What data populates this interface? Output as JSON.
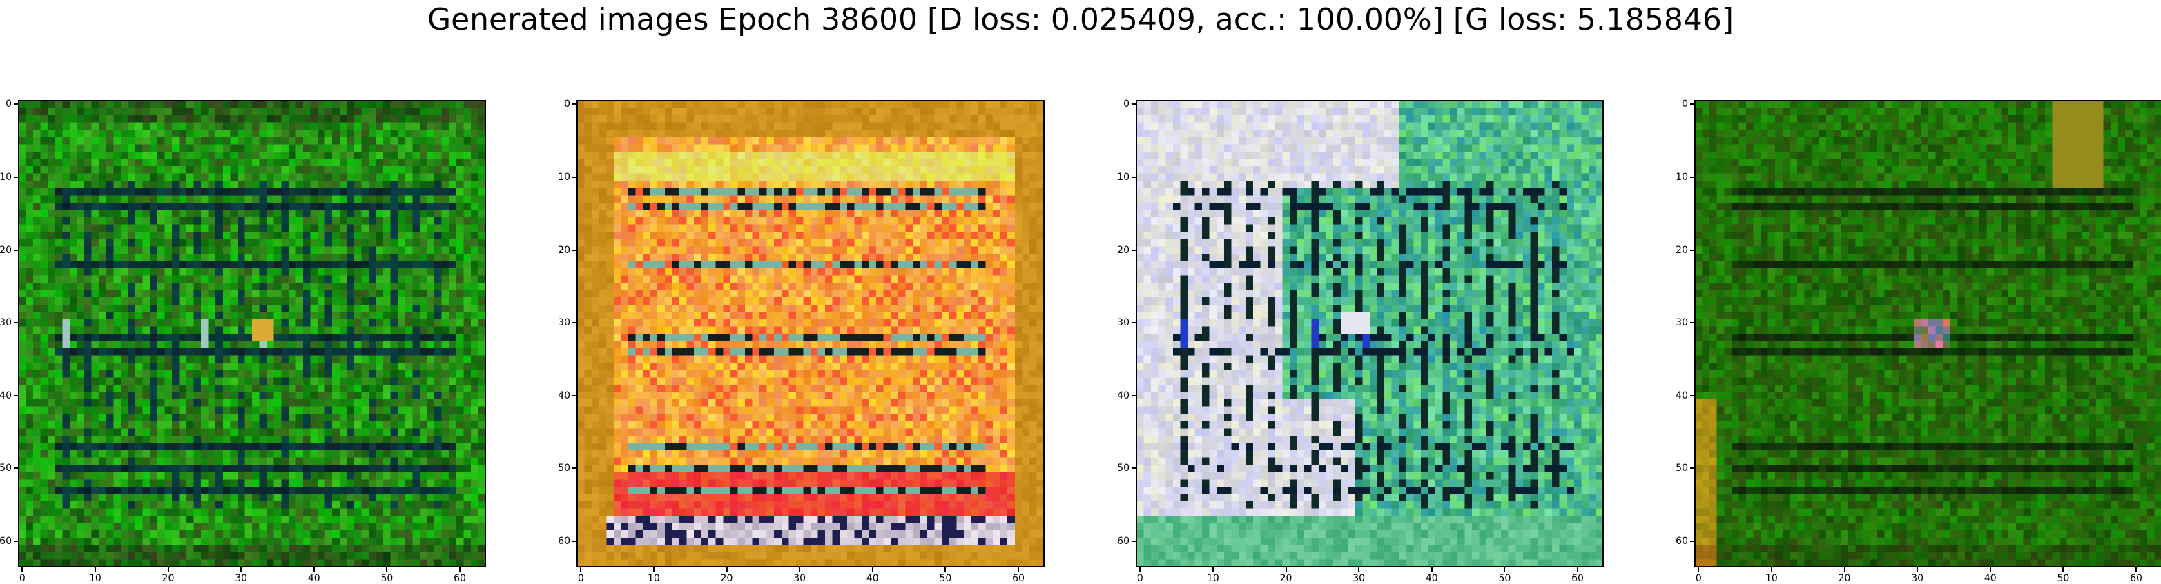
{
  "title": "Generated images Epoch 38600 [D loss: 0.025409, acc.: 100.00%] [G loss: 5.185846]",
  "chart_data": [
    {
      "type": "heatmap",
      "image": "panel-1",
      "palette": "green",
      "xlim": [
        -0.5,
        63.5
      ],
      "ylim": [
        63.5,
        -0.5
      ],
      "xticks": [
        "0",
        "10",
        "20",
        "30",
        "40",
        "50",
        "60"
      ],
      "yticks": [
        "0",
        "10",
        "20",
        "30",
        "40",
        "50",
        "60"
      ]
    },
    {
      "type": "heatmap",
      "image": "panel-2",
      "palette": "orange",
      "xlim": [
        -0.5,
        63.5
      ],
      "ylim": [
        63.5,
        -0.5
      ],
      "xticks": [
        "0",
        "10",
        "20",
        "30",
        "40",
        "50",
        "60"
      ],
      "yticks": [
        "0",
        "10",
        "20",
        "30",
        "40",
        "50",
        "60"
      ]
    },
    {
      "type": "heatmap",
      "image": "panel-3",
      "palette": "teal-white",
      "xlim": [
        -0.5,
        63.5
      ],
      "ylim": [
        63.5,
        -0.5
      ],
      "xticks": [
        "0",
        "10",
        "20",
        "30",
        "40",
        "50",
        "60"
      ],
      "yticks": [
        "0",
        "10",
        "20",
        "30",
        "40",
        "50",
        "60"
      ]
    },
    {
      "type": "heatmap",
      "image": "panel-4",
      "palette": "dark-green",
      "xlim": [
        -0.5,
        63.5
      ],
      "ylim": [
        63.5,
        -0.5
      ],
      "xticks": [
        "0",
        "10",
        "20",
        "30",
        "40",
        "50",
        "60"
      ],
      "yticks": [
        "0",
        "10",
        "20",
        "30",
        "40",
        "50",
        "60"
      ]
    }
  ]
}
